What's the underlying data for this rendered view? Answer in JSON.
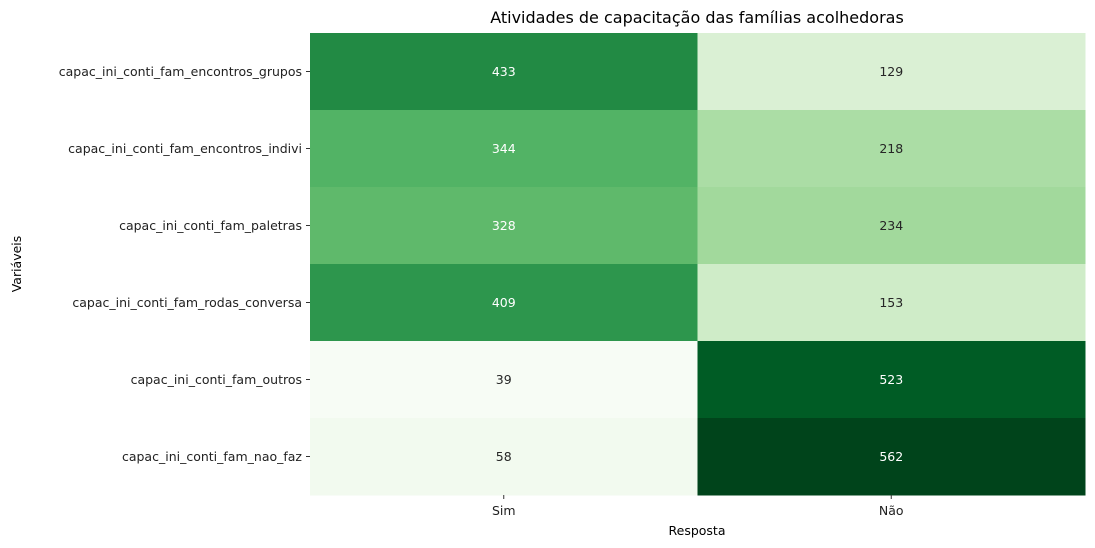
{
  "chart_data": {
    "type": "heatmap",
    "title": "Atividades de capacitação das famílias acolhedoras",
    "xlabel": "Resposta",
    "ylabel": "Variáveis",
    "x_categories": [
      "Sim",
      "Não"
    ],
    "y_categories": [
      "capac_ini_conti_fam_encontros_grupos",
      "capac_ini_conti_fam_encontros_indivi",
      "capac_ini_conti_fam_paletras",
      "capac_ini_conti_fam_rodas_conversa",
      "capac_ini_conti_fam_outros",
      "capac_ini_conti_fam_nao_faz"
    ],
    "values": [
      [
        433,
        129
      ],
      [
        344,
        218
      ],
      [
        328,
        234
      ],
      [
        409,
        153
      ],
      [
        39,
        523
      ],
      [
        58,
        562
      ]
    ],
    "value_labels": [
      [
        "433",
        "129"
      ],
      [
        "344",
        "218"
      ],
      [
        "328",
        "234"
      ],
      [
        "409",
        "153"
      ],
      [
        "39",
        "523"
      ],
      [
        "58",
        "562"
      ]
    ],
    "colormap": "Greens",
    "colorbar": false,
    "vmin": 39,
    "vmax": 562
  }
}
